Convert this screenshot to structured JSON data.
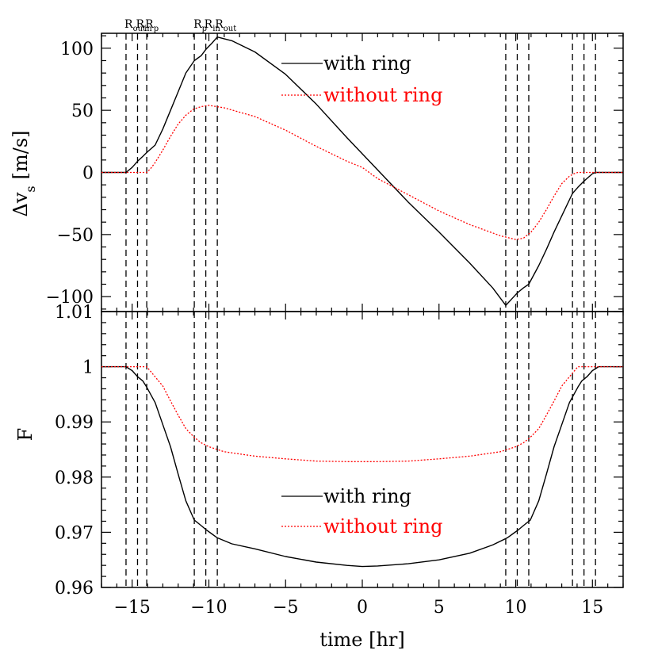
{
  "colors": {
    "with_ring": "#000000",
    "without_ring": "#ff0000"
  },
  "xaxis": {
    "label": "time [hr]",
    "range": [
      -17,
      17
    ],
    "ticks": [
      -15,
      -10,
      -5,
      0,
      5,
      10,
      15
    ],
    "tick_labels": [
      "−15",
      "−10",
      "−5",
      "0",
      "5",
      "10",
      "15"
    ]
  },
  "markers": {
    "times": [
      -15.4,
      -14.65,
      -14.05,
      -10.95,
      -10.2,
      -9.45,
      9.35,
      10.1,
      10.85,
      13.7,
      14.45,
      15.2
    ],
    "label_groups": [
      {
        "text": "R",
        "sub": "out",
        "time": -15.5
      },
      {
        "text": "R",
        "sub": "in",
        "time": -14.75
      },
      {
        "text": "R",
        "sub": "p",
        "time": -14.15
      },
      {
        "text": "R",
        "sub": "p",
        "time": -11.0
      },
      {
        "text": "R",
        "sub": "in",
        "time": -10.3
      },
      {
        "text": "R",
        "sub": "out",
        "time": -9.6
      }
    ]
  },
  "chart_data": [
    {
      "type": "line",
      "panel": "top",
      "ylabel": "Δv",
      "ylabel_sub": "s",
      "ylabel_units": "[m/s]",
      "ylim": [
        -112,
        112
      ],
      "yticks": [
        100,
        50,
        0,
        -50,
        -100
      ],
      "ytick_labels": [
        "100",
        "50",
        "0",
        "−50",
        "−100"
      ],
      "legend": {
        "placement": "top-right",
        "entries": [
          {
            "label": "with ring",
            "style": "solid",
            "color": "#000000"
          },
          {
            "label": "without ring",
            "style": "dotted",
            "color": "#ff0000"
          }
        ]
      },
      "series": [
        {
          "name": "with ring",
          "style": "solid",
          "color": "#000000",
          "x": [
            -17,
            -15.4,
            -15.0,
            -14.65,
            -14.3,
            -14.05,
            -13.5,
            -13.0,
            -12.5,
            -12.0,
            -11.5,
            -10.95,
            -10.5,
            -10.2,
            -9.8,
            -9.45,
            -8.5,
            -7.0,
            -5.0,
            -3.0,
            -1.0,
            0,
            1.0,
            3.0,
            5.0,
            7.0,
            8.5,
            9.35,
            9.8,
            10.1,
            10.5,
            10.85,
            11.5,
            12.0,
            12.5,
            13.0,
            13.5,
            13.7,
            14.05,
            14.45,
            15.0,
            15.2,
            17
          ],
          "y": [
            0,
            0,
            4,
            9,
            13,
            16,
            22,
            35,
            50,
            65,
            80,
            90,
            94,
            99,
            104,
            109,
            106,
            97,
            79,
            55,
            28,
            15,
            2,
            -24,
            -48,
            -73,
            -93,
            -107,
            -101,
            -97,
            -93,
            -90,
            -75,
            -62,
            -48,
            -35,
            -22,
            -17,
            -12,
            -7,
            -1,
            0,
            0
          ]
        },
        {
          "name": "without ring",
          "style": "dotted",
          "color": "#ff0000",
          "x": [
            -17,
            -14.05,
            -13.8,
            -13.5,
            -13.0,
            -12.5,
            -12.0,
            -11.5,
            -11.0,
            -10.5,
            -10.0,
            -9.0,
            -7.0,
            -5.0,
            -3.0,
            -1.0,
            0,
            1.0,
            3.0,
            5.0,
            7.0,
            9.0,
            10.0,
            10.5,
            11.0,
            11.5,
            12.0,
            12.5,
            13.0,
            13.5,
            13.8,
            14.05,
            17
          ],
          "y": [
            0,
            0,
            3,
            8,
            18,
            29,
            39,
            46,
            51,
            53,
            54,
            52,
            45,
            34,
            21,
            9,
            4,
            -5,
            -18,
            -31,
            -42,
            -51,
            -54,
            -53,
            -48,
            -40,
            -30,
            -19,
            -9,
            -3,
            -1,
            0,
            0
          ]
        }
      ]
    },
    {
      "type": "line",
      "panel": "bottom",
      "ylabel": "F",
      "ylim": [
        0.96,
        1.01
      ],
      "yticks": [
        1.01,
        1,
        0.99,
        0.98,
        0.97,
        0.96
      ],
      "ytick_labels": [
        "1.01",
        "1",
        "0.99",
        "0.98",
        "0.97",
        "0.96"
      ],
      "legend": {
        "placement": "bottom-right",
        "entries": [
          {
            "label": "with ring",
            "style": "solid",
            "color": "#000000"
          },
          {
            "label": "without ring",
            "style": "dotted",
            "color": "#ff0000"
          }
        ]
      },
      "series": [
        {
          "name": "with ring",
          "style": "solid",
          "color": "#000000",
          "x": [
            -17,
            -15.4,
            -15.0,
            -14.65,
            -14.3,
            -14.05,
            -13.5,
            -13.0,
            -12.5,
            -12.0,
            -11.5,
            -10.95,
            -10.5,
            -10.2,
            -9.8,
            -9.45,
            -8.5,
            -7.0,
            -5.0,
            -3.0,
            -1.0,
            0,
            1.0,
            3.0,
            5.0,
            7.0,
            8.5,
            9.45,
            9.8,
            10.2,
            10.5,
            10.95,
            11.5,
            12.0,
            12.5,
            13.0,
            13.5,
            14.05,
            14.3,
            14.65,
            15.0,
            15.4,
            17
          ],
          "y": [
            1.0,
            1.0,
            0.9993,
            0.9982,
            0.9974,
            0.9963,
            0.9935,
            0.9895,
            0.9855,
            0.9805,
            0.9757,
            0.9722,
            0.9712,
            0.9705,
            0.9697,
            0.969,
            0.9679,
            0.967,
            0.9656,
            0.9646,
            0.964,
            0.9638,
            0.9639,
            0.9643,
            0.965,
            0.9662,
            0.9677,
            0.969,
            0.9697,
            0.9705,
            0.9712,
            0.9722,
            0.9757,
            0.9805,
            0.9855,
            0.9895,
            0.9935,
            0.9963,
            0.9974,
            0.9982,
            0.9993,
            1.0,
            1.0
          ]
        },
        {
          "name": "without ring",
          "style": "dotted",
          "color": "#ff0000",
          "x": [
            -17,
            -14.05,
            -13.6,
            -13.0,
            -12.5,
            -12.0,
            -11.5,
            -10.95,
            -10.5,
            -10.0,
            -9.0,
            -7.0,
            -5.0,
            -3.0,
            -1.0,
            0,
            1.0,
            3.0,
            5.0,
            7.0,
            9.0,
            10.0,
            10.5,
            10.95,
            11.5,
            12.0,
            12.5,
            13.0,
            13.6,
            14.05,
            17
          ],
          "y": [
            1.0,
            1.0,
            0.9985,
            0.9965,
            0.9938,
            0.9912,
            0.9888,
            0.9872,
            0.9862,
            0.9855,
            0.9846,
            0.9838,
            0.9833,
            0.9829,
            0.9828,
            0.9828,
            0.9828,
            0.9829,
            0.9833,
            0.9838,
            0.9846,
            0.9855,
            0.9862,
            0.9872,
            0.9888,
            0.9912,
            0.9938,
            0.9965,
            0.9985,
            1.0,
            1.0
          ]
        }
      ]
    }
  ]
}
